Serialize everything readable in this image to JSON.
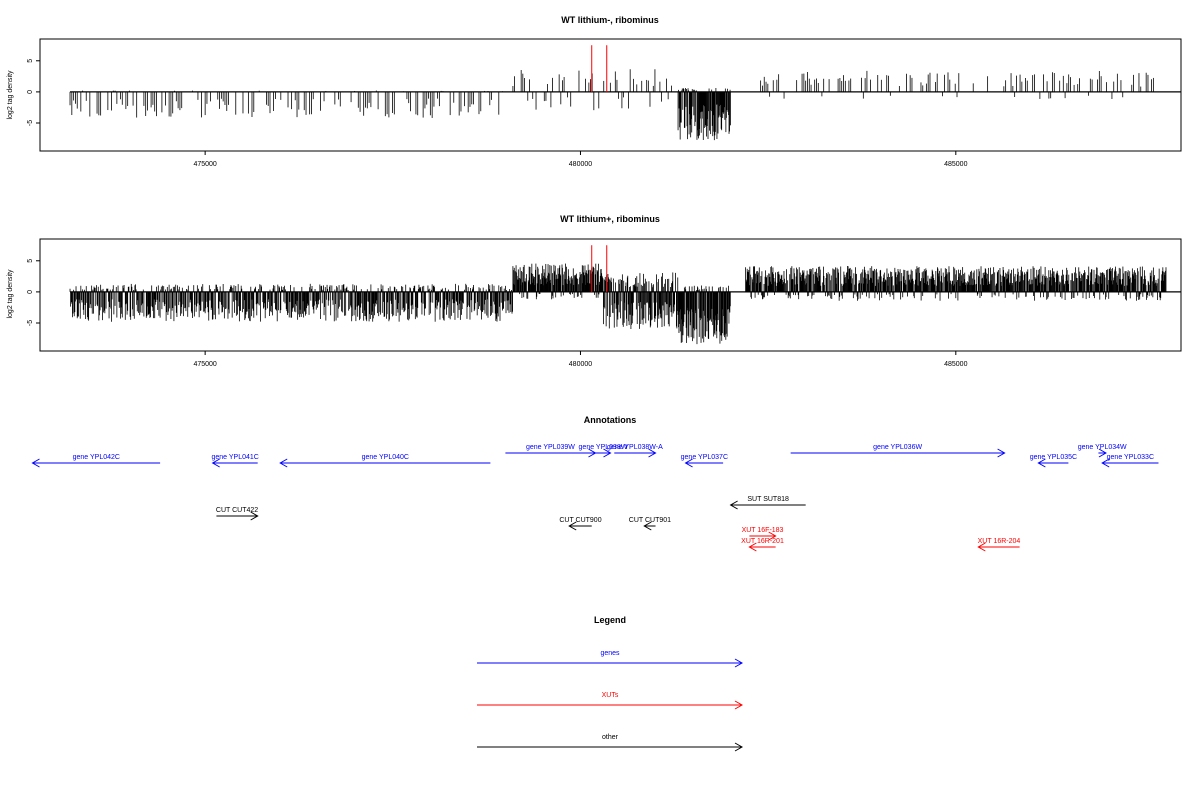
{
  "chart_data": [
    {
      "type": "bar",
      "title": "WT lithium-, ribominus",
      "ylabel": "log2 tag density",
      "xlim": [
        472800,
        488000
      ],
      "ylim": [
        -9.5,
        8.5
      ],
      "yticks": [
        -5,
        0,
        5
      ],
      "xticks": [
        475000,
        480000,
        485000
      ],
      "xtick_labels": [
        "475000",
        "480000",
        "485000"
      ],
      "ytick_labels": [
        "-5",
        "0",
        "5"
      ],
      "baseline": [
        473200,
        488000
      ],
      "density_profile": [
        {
          "x": [
            473200,
            479100
          ],
          "pos": 0.2,
          "neg": -3.5,
          "step": 24,
          "fill": 0.55,
          "seed": 11
        },
        {
          "x": [
            479100,
            481300
          ],
          "pos": 2.8,
          "neg": -2.5,
          "step": 22,
          "fill": 0.5,
          "seed": 12
        },
        {
          "x": [
            481300,
            482000
          ],
          "pos": 0.5,
          "neg": -6.5,
          "step": 7,
          "fill": 1.0,
          "seed": 13
        },
        {
          "x": [
            482400,
            487700
          ],
          "pos": 2.6,
          "neg": -1.0,
          "step": 24,
          "fill": 0.5,
          "seed": 14
        }
      ],
      "highlights": [
        480150,
        480350
      ],
      "highlight_value": 7.5,
      "highlight_color": "#ff0000"
    },
    {
      "type": "bar",
      "title": "WT lithium+, ribominus",
      "ylabel": "log2 tag density",
      "xlim": [
        472800,
        488000
      ],
      "ylim": [
        -9.5,
        8.5
      ],
      "yticks": [
        -5,
        0,
        5
      ],
      "xticks": [
        475000,
        480000,
        485000
      ],
      "xtick_labels": [
        "475000",
        "480000",
        "485000"
      ],
      "ytick_labels": [
        "-5",
        "0",
        "5"
      ],
      "baseline": [
        473200,
        488000
      ],
      "density_profile": [
        {
          "x": [
            473200,
            479100
          ],
          "pos": 1.0,
          "neg": -4.0,
          "step": 8,
          "fill": 0.95,
          "seed": 21
        },
        {
          "x": [
            479100,
            480300
          ],
          "pos": 3.5,
          "neg": -1.0,
          "step": 6,
          "fill": 0.95,
          "seed": 22
        },
        {
          "x": [
            480300,
            481300
          ],
          "pos": 2.5,
          "neg": -5.0,
          "step": 6,
          "fill": 0.95,
          "seed": 23
        },
        {
          "x": [
            481300,
            482000
          ],
          "pos": 0.8,
          "neg": -7.0,
          "step": 6,
          "fill": 1.0,
          "seed": 24
        },
        {
          "x": [
            482200,
            487800
          ],
          "pos": 3.2,
          "neg": -1.2,
          "step": 7,
          "fill": 0.95,
          "seed": 25
        }
      ],
      "highlights": [
        480150,
        480350
      ],
      "highlight_value": 7.5,
      "highlight_color": "#ff0000"
    },
    {
      "type": "other",
      "title": "Annotations",
      "xlim": [
        472800,
        488000
      ],
      "features": [
        {
          "label": "gene YPL042C",
          "start": 474400,
          "end": 472700,
          "row": 1,
          "class": "gene"
        },
        {
          "label": "gene YPL041C",
          "start": 475700,
          "end": 475100,
          "row": 1,
          "class": "gene"
        },
        {
          "label": "gene YPL040C",
          "start": 478800,
          "end": 476000,
          "row": 1,
          "class": "gene"
        },
        {
          "label": "gene YPL039W",
          "start": 479000,
          "end": 480200,
          "row": 0,
          "class": "gene"
        },
        {
          "label": "gene YPL038W",
          "start": 480200,
          "end": 480400,
          "row": 0,
          "class": "gene"
        },
        {
          "label": "gene YPL038W-A",
          "start": 480450,
          "end": 481000,
          "row": 0,
          "class": "gene"
        },
        {
          "label": "gene YPL037C",
          "start": 481900,
          "end": 481400,
          "row": 1,
          "class": "gene"
        },
        {
          "label": "gene YPL036W",
          "start": 482800,
          "end": 485650,
          "row": 0,
          "class": "gene"
        },
        {
          "label": "gene YPL034W",
          "start": 486900,
          "end": 487000,
          "row": 0,
          "class": "gene"
        },
        {
          "label": "gene YPL035C",
          "start": 486500,
          "end": 486100,
          "row": 1,
          "class": "gene"
        },
        {
          "label": "gene YPL033C",
          "start": 487700,
          "end": 486950,
          "row": 1,
          "class": "gene"
        },
        {
          "label": "SUT SUT818",
          "start": 483000,
          "end": 482000,
          "row": 2,
          "class": "other"
        },
        {
          "label": "CUT CUT422",
          "start": 475150,
          "end": 475700,
          "row": 3,
          "class": "other"
        },
        {
          "label": "CUT CUT900",
          "start": 480150,
          "end": 479850,
          "row": 4,
          "class": "other"
        },
        {
          "label": "CUT CUT901",
          "start": 481000,
          "end": 480850,
          "row": 4,
          "class": "other"
        },
        {
          "label": "XUT 16F-183",
          "start": 482250,
          "end": 482600,
          "row": 5,
          "class": "xut"
        },
        {
          "label": "XUT 16R-201",
          "start": 482600,
          "end": 482250,
          "row": 6,
          "class": "xut"
        },
        {
          "label": "XUT 16R-204",
          "start": 485850,
          "end": 485300,
          "row": 6,
          "class": "xut"
        }
      ]
    },
    {
      "type": "other",
      "title": "Legend",
      "entries": [
        {
          "label": "genes",
          "color": "#0000ff"
        },
        {
          "label": "XUTs",
          "color": "#ff0000"
        },
        {
          "label": "other",
          "color": "#000000"
        }
      ]
    }
  ],
  "colors": {
    "gene": "#0000ff",
    "xut": "#ff0000",
    "other": "#000000",
    "axis": "#000000"
  }
}
